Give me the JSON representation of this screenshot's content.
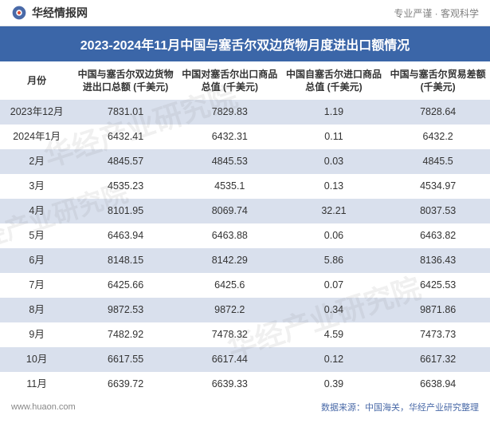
{
  "header": {
    "logo_text": "华经情报网",
    "tagline": "专业严谨 · 客观科学"
  },
  "title": "2023-2024年11月中国与塞舌尔双边货物月度进出口额情况",
  "table": {
    "columns": [
      "月份",
      "中国与塞舌尔双边货物进出口总额 (千美元)",
      "中国对塞舌尔出口商品总值 (千美元)",
      "中国自塞舌尔进口商品总值 (千美元)",
      "中国与塞舌尔贸易差额 (千美元)"
    ],
    "rows": [
      [
        "2023年12月",
        "7831.01",
        "7829.83",
        "1.19",
        "7828.64"
      ],
      [
        "2024年1月",
        "6432.41",
        "6432.31",
        "0.11",
        "6432.2"
      ],
      [
        "2月",
        "4845.57",
        "4845.53",
        "0.03",
        "4845.5"
      ],
      [
        "3月",
        "4535.23",
        "4535.1",
        "0.13",
        "4534.97"
      ],
      [
        "4月",
        "8101.95",
        "8069.74",
        "32.21",
        "8037.53"
      ],
      [
        "5月",
        "6463.94",
        "6463.88",
        "0.06",
        "6463.82"
      ],
      [
        "6月",
        "8148.15",
        "8142.29",
        "5.86",
        "8136.43"
      ],
      [
        "7月",
        "6425.66",
        "6425.6",
        "0.07",
        "6425.53"
      ],
      [
        "8月",
        "9872.53",
        "9872.2",
        "0.34",
        "9871.86"
      ],
      [
        "9月",
        "7482.92",
        "7478.32",
        "4.59",
        "7473.73"
      ],
      [
        "10月",
        "6617.55",
        "6617.44",
        "0.12",
        "6617.32"
      ],
      [
        "11月",
        "6639.72",
        "6639.33",
        "0.39",
        "6638.94"
      ]
    ],
    "stripe_color": "#d9e0ed",
    "bg_color": "#ffffff",
    "header_bg": "#3b66a8",
    "header_text_color": "#ffffff",
    "body_text_color": "#333333",
    "font_size_body": 12.5,
    "font_size_header": 12
  },
  "footer": {
    "left": "www.huaon.com",
    "right": "数据来源：中国海关，华经产业研究整理"
  },
  "watermark_text": "华经产业研究院"
}
